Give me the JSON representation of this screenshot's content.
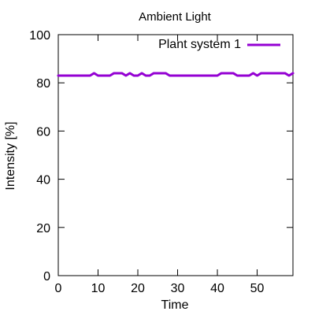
{
  "chart_data": {
    "type": "line",
    "title": "Ambient Light",
    "xlabel": "Time",
    "ylabel": "Intensity [%]",
    "xlim": [
      0,
      59
    ],
    "ylim": [
      0,
      100
    ],
    "xticks": [
      0,
      10,
      20,
      30,
      40,
      50
    ],
    "yticks": [
      0,
      20,
      40,
      60,
      80,
      100
    ],
    "legend_position": "top-right",
    "grid": false,
    "series": [
      {
        "name": "Plant system 1",
        "color": "#9400d3",
        "x": [
          0,
          1,
          2,
          3,
          4,
          5,
          6,
          7,
          8,
          9,
          10,
          11,
          12,
          13,
          14,
          15,
          16,
          17,
          18,
          19,
          20,
          21,
          22,
          23,
          24,
          25,
          26,
          27,
          28,
          29,
          30,
          31,
          32,
          33,
          34,
          35,
          36,
          37,
          38,
          39,
          40,
          41,
          42,
          43,
          44,
          45,
          46,
          47,
          48,
          49,
          50,
          51,
          52,
          53,
          54,
          55,
          56,
          57,
          58,
          59
        ],
        "y": [
          83,
          83,
          83,
          83,
          83,
          83,
          83,
          83,
          83,
          84,
          83,
          83,
          83,
          83,
          84,
          84,
          84,
          83,
          84,
          83,
          83,
          84,
          83,
          83,
          84,
          84,
          84,
          84,
          83,
          83,
          83,
          83,
          83,
          83,
          83,
          83,
          83,
          83,
          83,
          83,
          83,
          84,
          84,
          84,
          84,
          83,
          83,
          83,
          83,
          84,
          83,
          84,
          84,
          84,
          84,
          84,
          84,
          84,
          83,
          84
        ]
      }
    ]
  }
}
